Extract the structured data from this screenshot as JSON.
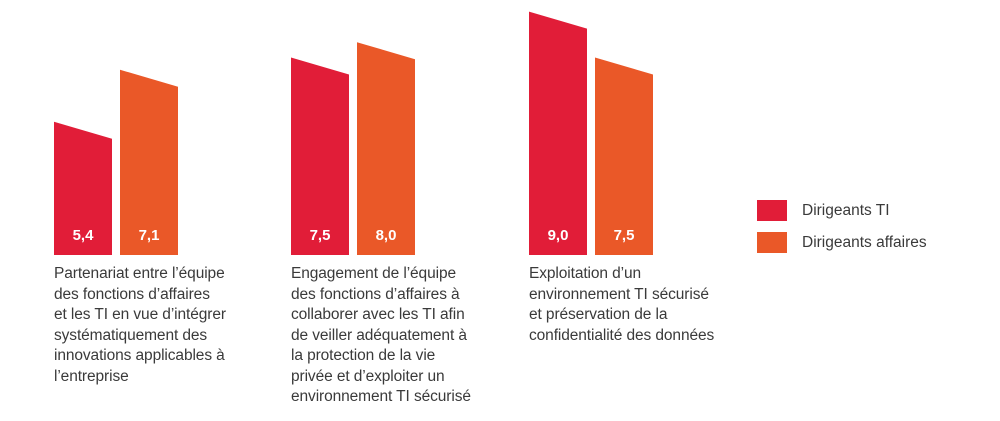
{
  "chart_data": {
    "type": "bar",
    "title": "",
    "xlabel": "",
    "ylabel": "",
    "grid": false,
    "legend_position": "right",
    "categories": [
      "Partenariat entre l’équipe\ndes fonctions d’affaires\net les TI en vue d’intégrer\nsystématiquement des\ninnovations applicables à\nl’entreprise",
      "Engagement de l’équipe\ndes fonctions d’affaires à\ncollaborer avec les TI afin\nde veiller adéquatement à\nla protection de la vie\nprivée et d’exploiter un\nenvironnement TI sécurisé",
      "Exploitation d’un\nenvironnement TI sécurisé\net préservation de la\nconfidentialité des données"
    ],
    "series": [
      {
        "name": "Dirigeants TI",
        "color": "#E11D38",
        "values": [
          5.4,
          7.5,
          9.0
        ],
        "labels": [
          "5,4",
          "7,5",
          "9,0"
        ]
      },
      {
        "name": "Dirigeants affaires",
        "color": "#EA5828",
        "values": [
          7.1,
          8.0,
          7.5
        ],
        "labels": [
          "7,1",
          "8,0",
          "7,5"
        ]
      }
    ]
  }
}
